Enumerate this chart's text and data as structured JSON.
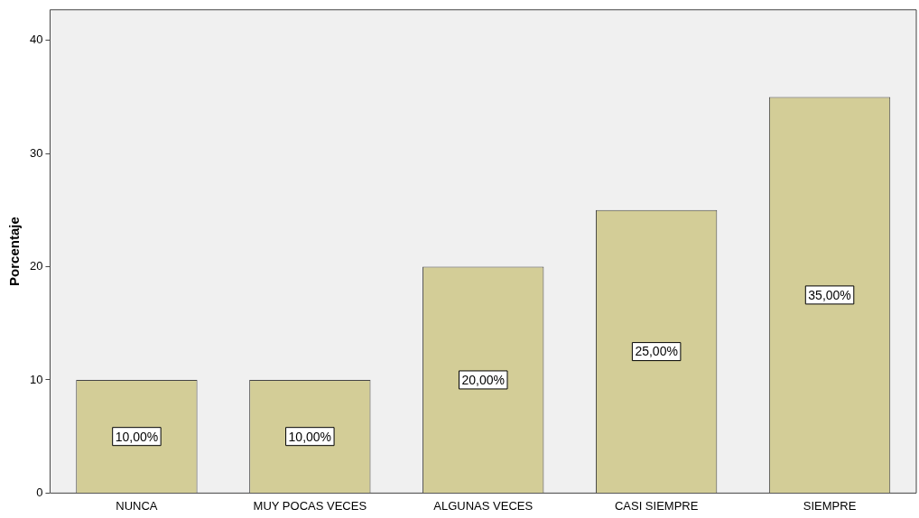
{
  "chart_data": {
    "type": "bar",
    "ylabel": "Porcentaje",
    "categories": [
      "NUNCA",
      "MUY POCAS VECES",
      "ALGUNAS VECES",
      "CASI SIEMPRE",
      "SIEMPRE"
    ],
    "values": [
      10,
      10,
      20,
      25,
      35
    ],
    "value_labels": [
      "10,00%",
      "10,00%",
      "20,00%",
      "25,00%",
      "35,00%"
    ],
    "color": "#d3cd97",
    "ylim": [
      0,
      42.7
    ],
    "yticks": [
      0,
      10,
      20,
      30,
      40
    ],
    "grid": false,
    "legend": false
  }
}
